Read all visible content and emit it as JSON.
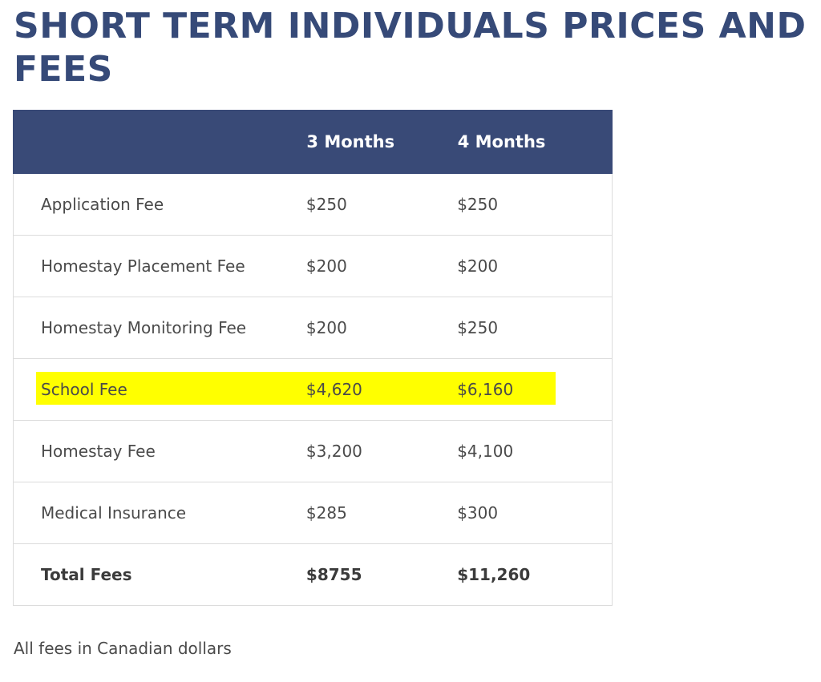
{
  "page_title": "SHORT TERM INDIVIDUALS PRICES AND FEES",
  "table": {
    "headers": [
      "",
      "3 Months",
      "4 Months"
    ],
    "rows": [
      {
        "label": "Application Fee",
        "three_months": "$250",
        "four_months": "$250"
      },
      {
        "label": "Homestay Placement Fee",
        "three_months": "$200",
        "four_months": "$200"
      },
      {
        "label": "Homestay Monitoring Fee",
        "three_months": "$200",
        "four_months": "$250"
      },
      {
        "label": "School Fee",
        "three_months": "$4,620",
        "four_months": "$6,160"
      },
      {
        "label": "Homestay Fee",
        "three_months": "$3,200",
        "four_months": "$4,100"
      },
      {
        "label": "Medical Insurance",
        "three_months": "$285",
        "four_months": "$300"
      },
      {
        "label": "Total Fees",
        "three_months": "$8755",
        "four_months": "$11,260"
      }
    ]
  },
  "note": "All fees in Canadian dollars",
  "colors": {
    "title": "#364a78",
    "header_bg": "#394a77",
    "highlight": "#ffff00"
  }
}
